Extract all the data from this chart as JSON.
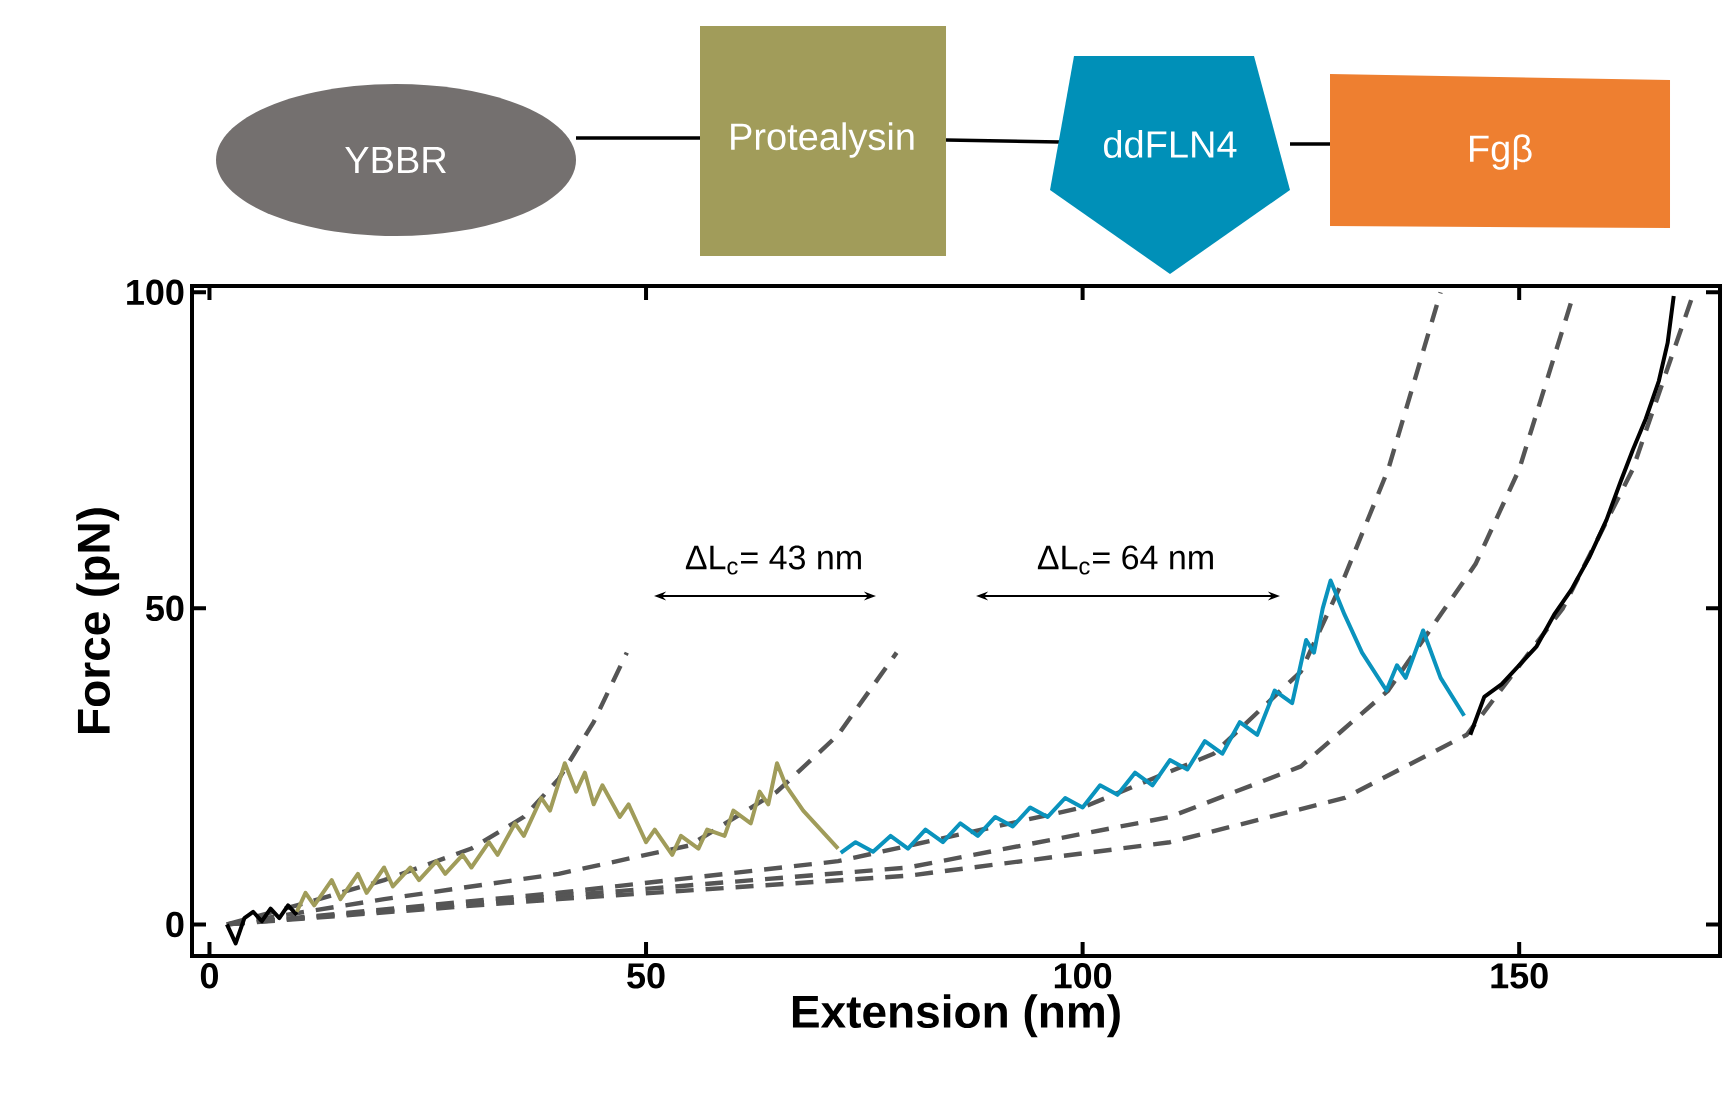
{
  "chart_data": {
    "type": "line",
    "xlabel": "Extension (nm)",
    "ylabel": "Force (pN)",
    "xlim": [
      -2,
      173
    ],
    "ylim": [
      -5,
      101
    ],
    "xticks": [
      0,
      50,
      100,
      150
    ],
    "yticks": [
      0,
      50,
      100
    ],
    "annotations": [
      "YBBR",
      "Protealysin",
      "ddFLN4",
      "Fgβ",
      "ΔL$_{c}$= 43 nm",
      "ΔL$_{c}$= 64 nm"
    ],
    "series": [
      {
        "line_style": "dashed",
        "color": "#555555",
        "x": [
          2,
          10,
          20,
          30,
          36,
          40,
          44,
          47.8
        ],
        "values": [
          0,
          3,
          7,
          12,
          17,
          23,
          32,
          43
        ]
      },
      {
        "line_style": "dashed",
        "color": "#555555",
        "x": [
          2,
          20,
          40,
          55,
          65,
          72,
          78.7
        ],
        "values": [
          0,
          4,
          8,
          12.5,
          21,
          30,
          43
        ]
      },
      {
        "line_style": "dashed",
        "color": "#555555",
        "x": [
          2,
          40,
          72,
          100,
          115,
          125,
          130,
          135,
          141
        ],
        "values": [
          0,
          5,
          10,
          18.5,
          27,
          40,
          55,
          72,
          100
        ]
      },
      {
        "line_style": "dashed",
        "color": "#555555",
        "x": [
          2,
          40,
          80,
          110,
          125,
          135,
          145,
          150,
          156.3
        ],
        "values": [
          0,
          4.5,
          9,
          17,
          25,
          37,
          57,
          72,
          100
        ]
      },
      {
        "line_style": "dashed",
        "color": "#555555",
        "x": [
          2,
          40,
          80,
          110,
          130,
          144,
          155,
          163,
          170
        ],
        "values": [
          0,
          4,
          7.7,
          13,
          20,
          30,
          50,
          72,
          100
        ]
      },
      {
        "color": "#000000",
        "x": [
          2,
          3,
          4,
          5,
          6,
          7,
          8,
          9,
          10
        ],
        "values": [
          0,
          -3,
          1,
          2,
          0.5,
          2.5,
          1,
          3,
          1.5
        ]
      },
      {
        "color": "#a09c5a",
        "x": [
          10,
          11,
          12,
          14,
          15,
          17,
          18,
          20,
          21,
          23,
          24,
          26,
          27,
          29,
          30,
          32,
          33,
          35,
          36,
          38,
          39,
          40.7,
          42,
          43,
          44,
          45,
          47,
          48,
          50,
          51,
          53,
          54,
          56,
          57,
          59,
          60,
          62,
          63,
          64,
          65,
          66,
          68,
          70,
          72
        ],
        "values": [
          2,
          5,
          3,
          7,
          4,
          8,
          5,
          9,
          6,
          9,
          7,
          10,
          8,
          11,
          9,
          13,
          11,
          16,
          14,
          20,
          18,
          25.5,
          21,
          24,
          19,
          22,
          17,
          19,
          13,
          15,
          11,
          14,
          12,
          15,
          14,
          18,
          16,
          21,
          19,
          25.5,
          22,
          18,
          15,
          12
        ]
      },
      {
        "color": "#0a93bd",
        "x": [
          72.3,
          74,
          76,
          78,
          80,
          82,
          84,
          86,
          88,
          90,
          92,
          94,
          96,
          98,
          100,
          102,
          104,
          106,
          108,
          110,
          112,
          114,
          116,
          118,
          120,
          122,
          124,
          125.6,
          126.5,
          127.5,
          128.4,
          130,
          132,
          134.8,
          136,
          137,
          139,
          141,
          143.7
        ],
        "values": [
          11.3,
          13,
          11.5,
          14,
          12,
          15,
          13,
          16,
          14,
          17,
          15.5,
          18.5,
          17,
          20,
          18.5,
          22,
          20.5,
          24,
          22,
          26,
          24.5,
          29,
          27,
          32,
          30,
          37,
          35,
          45,
          43,
          50,
          54.4,
          49,
          43,
          37,
          41,
          39,
          46.5,
          39,
          33
        ]
      },
      {
        "color": "#000000",
        "x": [
          144.4,
          146,
          148,
          150,
          152,
          154,
          156,
          158,
          160,
          161.6,
          163,
          164.5,
          166,
          167,
          167.7
        ],
        "values": [
          30,
          36,
          38,
          41,
          44,
          49,
          53,
          58,
          64,
          70,
          75,
          80,
          86,
          92,
          99.4
        ]
      }
    ]
  }
}
